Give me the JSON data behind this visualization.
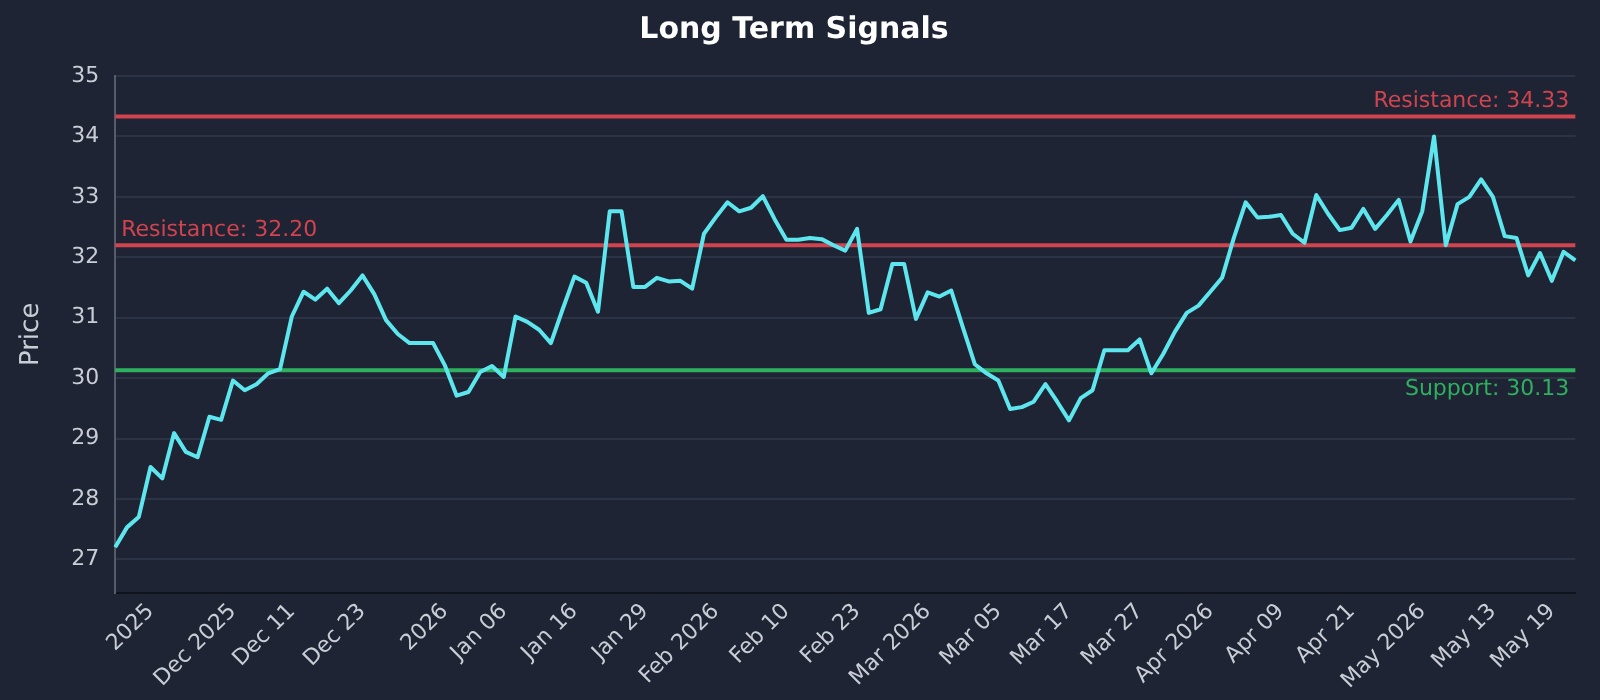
{
  "chart_data": {
    "type": "line",
    "title": "Long Term Signals",
    "ylabel": "Price",
    "categories": [
      null,
      null,
      null,
      "2025",
      null,
      null,
      null,
      null,
      null,
      null,
      "Dec 2025",
      null,
      null,
      null,
      null,
      "Dec 11",
      null,
      null,
      null,
      null,
      null,
      "Dec 23",
      null,
      null,
      null,
      null,
      null,
      null,
      "2026",
      null,
      null,
      null,
      null,
      "Jan 06",
      null,
      null,
      null,
      null,
      null,
      "Jan 16",
      null,
      null,
      null,
      null,
      null,
      "Jan 29",
      null,
      null,
      null,
      null,
      null,
      "Feb 2026",
      null,
      null,
      null,
      null,
      null,
      "Feb 10",
      null,
      null,
      null,
      null,
      null,
      "Feb 23",
      null,
      null,
      null,
      null,
      null,
      "Mar 2026",
      null,
      null,
      null,
      null,
      null,
      "Mar 05",
      null,
      null,
      null,
      null,
      null,
      "Mar 17",
      null,
      null,
      null,
      null,
      null,
      "Mar 27",
      null,
      null,
      null,
      null,
      null,
      "Apr 2026",
      null,
      null,
      null,
      null,
      null,
      "Apr 09",
      null,
      null,
      null,
      null,
      null,
      "Apr 21",
      null,
      null,
      null,
      null,
      null,
      "May 2026",
      null,
      null,
      null,
      null,
      null,
      "May 13",
      null,
      null,
      null,
      null,
      "May 19",
      null,
      null
    ],
    "series": [
      {
        "color": "#5ee6ee",
        "values": [
          27.2,
          27.53,
          27.7,
          28.53,
          28.34,
          29.09,
          28.78,
          28.69,
          29.36,
          29.31,
          29.96,
          29.8,
          29.9,
          30.08,
          30.15,
          31.02,
          31.43,
          31.3,
          31.48,
          31.24,
          31.45,
          31.7,
          31.39,
          30.96,
          30.73,
          30.58,
          30.58,
          30.58,
          30.21,
          29.71,
          29.77,
          30.1,
          30.2,
          30.02,
          31.02,
          30.93,
          30.8,
          30.58,
          31.14,
          31.68,
          31.58,
          31.1,
          32.76,
          32.76,
          31.51,
          31.51,
          31.66,
          31.6,
          31.61,
          31.48,
          32.39,
          32.66,
          32.91,
          32.76,
          32.82,
          33.01,
          32.63,
          32.29,
          32.29,
          32.32,
          32.3,
          32.2,
          32.11,
          32.47,
          31.08,
          31.14,
          31.89,
          31.89,
          30.98,
          31.42,
          31.35,
          31.45,
          30.83,
          30.23,
          30.08,
          29.96,
          29.49,
          29.52,
          29.61,
          29.9,
          29.61,
          29.3,
          29.67,
          29.8,
          30.46,
          30.46,
          30.46,
          30.64,
          30.08,
          30.4,
          30.77,
          31.08,
          31.2,
          31.43,
          31.66,
          32.32,
          32.91,
          32.66,
          32.67,
          32.7,
          32.39,
          32.24,
          33.03,
          32.72,
          32.45,
          32.49,
          32.8,
          32.47,
          32.7,
          32.95,
          32.26,
          32.76,
          34.0,
          32.2,
          32.88,
          33.0,
          33.29,
          33.0,
          32.35,
          32.32,
          31.7,
          32.07,
          31.61,
          32.09,
          31.95
        ]
      }
    ],
    "ylim": [
      26.45,
      35
    ],
    "yticks": [
      27,
      28,
      29,
      30,
      31,
      32,
      33,
      34,
      35
    ],
    "grid": "y",
    "legend": false,
    "marker": "none",
    "line_style": "solid",
    "ref_lines": [
      {
        "axis": "y",
        "value": 34.33,
        "label": "Resistance: 34.33",
        "color": "#d0434f"
      },
      {
        "axis": "y",
        "value": 32.2,
        "label": "Resistance: 32.20",
        "color": "#d0434f"
      },
      {
        "axis": "y",
        "value": 30.13,
        "label": "Support: 30.13",
        "color": "#2fb061"
      }
    ]
  }
}
